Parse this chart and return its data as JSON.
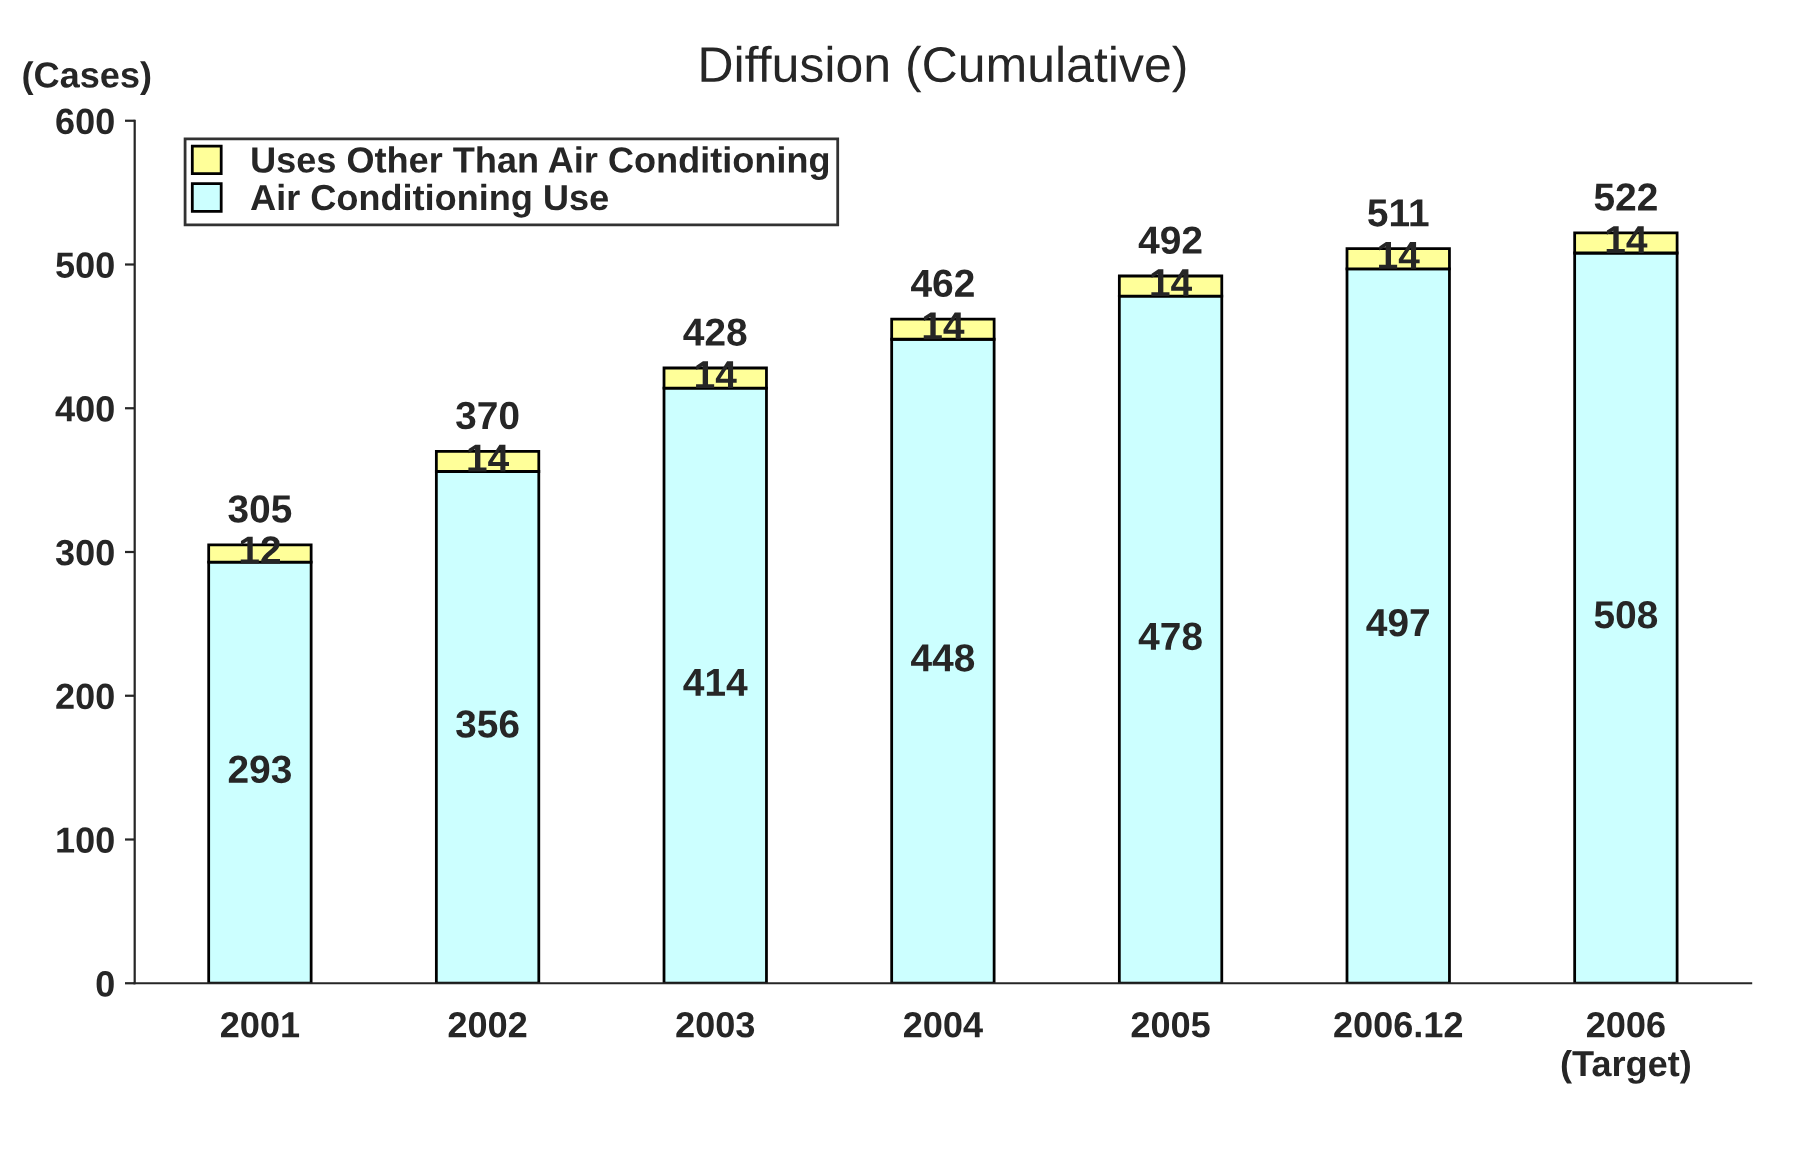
{
  "chart_data": {
    "type": "bar",
    "title": "Diffusion (Cumulative)",
    "ylabel": "(Cases)",
    "categories": [
      "2001",
      "2002",
      "2003",
      "2004",
      "2005",
      "2006.12",
      "2006\n(Target)"
    ],
    "stacked": true,
    "series": [
      {
        "name": "Air Conditioning Use",
        "color": "#ccffff",
        "values": [
          293,
          356,
          414,
          448,
          478,
          497,
          508
        ]
      },
      {
        "name": "Uses Other Than Air Conditioning",
        "color": "#ffff99",
        "values": [
          12,
          14,
          14,
          14,
          14,
          14,
          14
        ]
      }
    ],
    "totals": [
      "305",
      "370",
      "428",
      "462",
      "492",
      "511",
      "522"
    ],
    "data_labels": true,
    "ylim": [
      0,
      600
    ],
    "yticks": [
      0,
      100,
      200,
      300,
      400,
      500,
      600
    ],
    "grid": false,
    "legend": "top left"
  }
}
